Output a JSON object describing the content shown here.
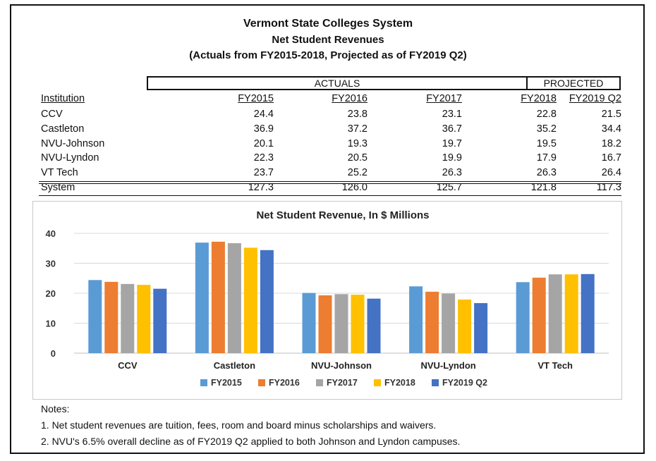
{
  "header": {
    "title": "Vermont State Colleges System",
    "subtitle": "Net Student Revenues",
    "note": "(Actuals from FY2015-2018, Projected as of FY2019 Q2)"
  },
  "table": {
    "group_actuals": "ACTUALS",
    "group_projected": "PROJECTED",
    "columns": [
      "Institution",
      "FY2015",
      "FY2016",
      "FY2017",
      "FY2018",
      "FY2019 Q2"
    ],
    "rows": [
      [
        "CCV",
        "24.4",
        "23.8",
        "23.1",
        "22.8",
        "21.5"
      ],
      [
        "Castleton",
        "36.9",
        "37.2",
        "36.7",
        "35.2",
        "34.4"
      ],
      [
        "NVU-Johnson",
        "20.1",
        "19.3",
        "19.7",
        "19.5",
        "18.2"
      ],
      [
        "NVU-Lyndon",
        "22.3",
        "20.5",
        "19.9",
        "17.9",
        "16.7"
      ],
      [
        "VT Tech",
        "23.7",
        "25.2",
        "26.3",
        "26.3",
        "26.4"
      ]
    ],
    "total": [
      "System",
      "127.3",
      "126.0",
      "125.7",
      "121.8",
      "117.3"
    ]
  },
  "chart_data": {
    "type": "bar",
    "title": "Net Student Revenue, In $ Millions",
    "categories": [
      "CCV",
      "Castleton",
      "NVU-Johnson",
      "NVU-Lyndon",
      "VT Tech"
    ],
    "series": [
      {
        "name": "FY2015",
        "color": "#5B9BD5",
        "values": [
          24.4,
          36.9,
          20.1,
          22.3,
          23.7
        ]
      },
      {
        "name": "FY2016",
        "color": "#ED7D31",
        "values": [
          23.8,
          37.2,
          19.3,
          20.5,
          25.2
        ]
      },
      {
        "name": "FY2017",
        "color": "#A5A5A5",
        "values": [
          23.1,
          36.7,
          19.7,
          19.9,
          26.3
        ]
      },
      {
        "name": "FY2018",
        "color": "#FFC000",
        "values": [
          22.8,
          35.2,
          19.5,
          17.9,
          26.3
        ]
      },
      {
        "name": "FY2019 Q2",
        "color": "#4472C4",
        "values": [
          21.5,
          34.4,
          18.2,
          16.7,
          26.4
        ]
      }
    ],
    "ylim": [
      0,
      40
    ],
    "yticks": [
      0,
      10,
      20,
      30,
      40
    ],
    "grid": true,
    "legend": "bottom"
  },
  "notes": {
    "heading": "Notes:",
    "items": [
      "1. Net student revenues are tuition, fees, room and board minus scholarships and waivers.",
      "2. NVU's 6.5% overall decline as of FY2019 Q2 applied to both Johnson and Lyndon campuses."
    ]
  }
}
